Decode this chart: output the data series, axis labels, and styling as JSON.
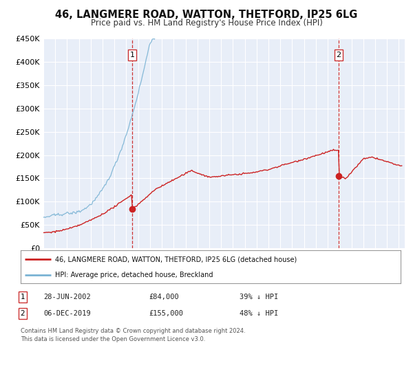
{
  "title": "46, LANGMERE ROAD, WATTON, THETFORD, IP25 6LG",
  "subtitle": "Price paid vs. HM Land Registry's House Price Index (HPI)",
  "ylim": [
    0,
    450000
  ],
  "yticks": [
    0,
    50000,
    100000,
    150000,
    200000,
    250000,
    300000,
    350000,
    400000,
    450000
  ],
  "xlim_start": 1995.0,
  "xlim_end": 2025.5,
  "hpi_color": "#7ab3d4",
  "price_color": "#cc2222",
  "marker1_x": 2002.49,
  "marker1_y": 84000,
  "marker2_x": 2019.92,
  "marker2_y": 155000,
  "vline1_x": 2002.49,
  "vline2_x": 2019.92,
  "legend_label1": "46, LANGMERE ROAD, WATTON, THETFORD, IP25 6LG (detached house)",
  "legend_label2": "HPI: Average price, detached house, Breckland",
  "table_row1": [
    "1",
    "28-JUN-2002",
    "£84,000",
    "39% ↓ HPI"
  ],
  "table_row2": [
    "2",
    "06-DEC-2019",
    "£155,000",
    "48% ↓ HPI"
  ],
  "footnote": "Contains HM Land Registry data © Crown copyright and database right 2024.\nThis data is licensed under the Open Government Licence v3.0.",
  "background_color": "#ffffff",
  "plot_bg_color": "#e8eef8",
  "grid_color": "#ffffff",
  "title_fontsize": 10.5,
  "subtitle_fontsize": 8.5
}
